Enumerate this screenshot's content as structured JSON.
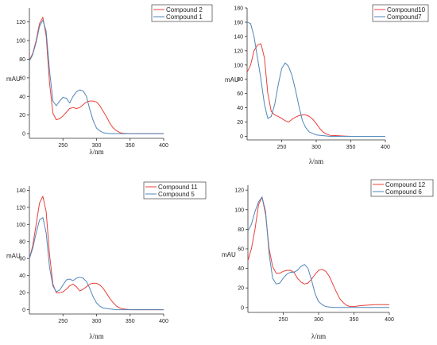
{
  "colors": {
    "red": "#e8403a",
    "blue": "#4f86b8"
  },
  "chart_data": [
    {
      "type": "line",
      "xlabel": "λ/nm",
      "ylabel": "mAU",
      "xlim": [
        200,
        400
      ],
      "ylim": [
        -5,
        135
      ],
      "xticks": [
        250,
        300,
        350,
        400
      ],
      "yticks": [
        0,
        20,
        40,
        60,
        80,
        100,
        120
      ],
      "legend": "top-right",
      "series": [
        {
          "name": "Compound 2",
          "color": "#e8403a",
          "x": [
            200,
            205,
            210,
            215,
            220,
            225,
            230,
            235,
            240,
            245,
            250,
            255,
            260,
            265,
            270,
            275,
            280,
            285,
            290,
            295,
            300,
            305,
            310,
            315,
            320,
            325,
            330,
            335,
            340,
            350,
            360,
            380,
            400
          ],
          "y": [
            79,
            86,
            100,
            118,
            125,
            105,
            55,
            22,
            15,
            16,
            19,
            23,
            27,
            28,
            27,
            28,
            31,
            34,
            35,
            35,
            34,
            30,
            24,
            18,
            11,
            6,
            3,
            1,
            0.5,
            0,
            0,
            0,
            0
          ]
        },
        {
          "name": "Compound 1",
          "color": "#4f86b8",
          "x": [
            200,
            205,
            210,
            215,
            220,
            225,
            230,
            235,
            240,
            245,
            250,
            255,
            260,
            265,
            270,
            275,
            280,
            285,
            290,
            295,
            300,
            305,
            310,
            320,
            330,
            350,
            400
          ],
          "y": [
            78,
            85,
            98,
            115,
            122,
            110,
            68,
            35,
            30,
            35,
            39,
            38,
            33,
            40,
            45,
            47,
            46,
            40,
            26,
            14,
            6,
            3,
            1,
            0,
            0,
            0,
            0
          ]
        }
      ]
    },
    {
      "type": "line",
      "xlabel": "λ/nm",
      "ylabel": "mAU",
      "xlim": [
        200,
        400
      ],
      "ylim": [
        -5,
        180
      ],
      "xticks": [
        250,
        300,
        350,
        400
      ],
      "yticks": [
        0,
        20,
        40,
        60,
        80,
        100,
        120,
        140,
        160,
        180
      ],
      "legend": "top-right",
      "series": [
        {
          "name": "Compound10",
          "color": "#e8403a",
          "x": [
            200,
            205,
            210,
            215,
            220,
            225,
            230,
            235,
            240,
            245,
            250,
            255,
            260,
            265,
            270,
            275,
            280,
            285,
            290,
            295,
            300,
            305,
            310,
            315,
            320,
            330,
            340,
            350,
            400
          ],
          "y": [
            90,
            100,
            120,
            128,
            130,
            110,
            60,
            35,
            30,
            28,
            25,
            22,
            20,
            24,
            27,
            29,
            30,
            30,
            28,
            24,
            18,
            11,
            6,
            3,
            1.5,
            1,
            0.5,
            0,
            0
          ]
        },
        {
          "name": "Compound7",
          "color": "#4f86b8",
          "x": [
            200,
            205,
            210,
            215,
            220,
            225,
            230,
            235,
            240,
            245,
            250,
            255,
            260,
            265,
            270,
            275,
            280,
            285,
            290,
            300,
            310,
            320,
            400
          ],
          "y": [
            160,
            158,
            140,
            110,
            80,
            45,
            25,
            28,
            45,
            72,
            95,
            103,
            98,
            85,
            65,
            42,
            22,
            12,
            6,
            2,
            1,
            0,
            0
          ]
        }
      ]
    },
    {
      "type": "line",
      "xlabel": "λ/nm",
      "ylabel": "mAU",
      "xlim": [
        200,
        400
      ],
      "ylim": [
        -5,
        145
      ],
      "xticks": [
        250,
        300,
        350,
        400
      ],
      "yticks": [
        0,
        20,
        40,
        60,
        80,
        100,
        120,
        140
      ],
      "legend": "top-right",
      "series": [
        {
          "name": "Compound 11",
          "color": "#e8403a",
          "x": [
            200,
            205,
            210,
            215,
            220,
            225,
            230,
            235,
            240,
            245,
            250,
            255,
            260,
            265,
            270,
            275,
            280,
            285,
            290,
            295,
            300,
            305,
            310,
            315,
            320,
            325,
            330,
            335,
            340,
            350,
            400
          ],
          "y": [
            60,
            75,
            100,
            125,
            133,
            115,
            65,
            30,
            20,
            20,
            21,
            24,
            28,
            30,
            27,
            22,
            24,
            27,
            30,
            31,
            31,
            29,
            25,
            19,
            13,
            8,
            4,
            2,
            1,
            0,
            0
          ]
        },
        {
          "name": "Compound 5",
          "color": "#4f86b8",
          "x": [
            200,
            205,
            210,
            215,
            220,
            225,
            230,
            235,
            240,
            245,
            250,
            255,
            260,
            265,
            270,
            275,
            280,
            285,
            290,
            295,
            300,
            305,
            310,
            320,
            330,
            350,
            400
          ],
          "y": [
            60,
            72,
            90,
            105,
            108,
            90,
            50,
            28,
            21,
            23,
            29,
            35,
            36,
            34,
            37,
            38,
            37,
            33,
            25,
            15,
            8,
            4,
            2,
            1,
            0,
            0,
            0
          ]
        }
      ]
    },
    {
      "type": "line",
      "xlabel": "λ/nm",
      "ylabel": "mAU",
      "xlim": [
        200,
        400
      ],
      "ylim": [
        -5,
        125
      ],
      "xticks": [
        250,
        300,
        350,
        400
      ],
      "yticks": [
        0,
        20,
        40,
        60,
        80,
        100,
        120
      ],
      "legend": "top-right",
      "series": [
        {
          "name": "Compound 12",
          "color": "#e8403a",
          "x": [
            200,
            205,
            210,
            215,
            220,
            225,
            230,
            235,
            240,
            245,
            250,
            255,
            260,
            265,
            270,
            275,
            280,
            285,
            290,
            295,
            300,
            305,
            310,
            315,
            320,
            325,
            330,
            335,
            340,
            345,
            350,
            360,
            380,
            400
          ],
          "y": [
            48,
            60,
            80,
            105,
            113,
            95,
            60,
            42,
            35,
            35,
            37,
            38,
            38,
            36,
            30,
            26,
            24,
            25,
            29,
            34,
            38,
            39,
            37,
            32,
            24,
            16,
            9,
            5,
            2,
            1,
            1,
            2,
            3,
            3
          ]
        },
        {
          "name": "Compound 6",
          "color": "#4f86b8",
          "x": [
            200,
            205,
            210,
            215,
            220,
            225,
            230,
            235,
            240,
            245,
            250,
            255,
            260,
            265,
            270,
            275,
            280,
            285,
            290,
            295,
            300,
            305,
            310,
            320,
            340,
            360,
            400
          ],
          "y": [
            78,
            85,
            98,
            108,
            113,
            98,
            55,
            30,
            24,
            25,
            30,
            34,
            36,
            36,
            38,
            42,
            44,
            40,
            28,
            14,
            6,
            3,
            1,
            0,
            0,
            0,
            0
          ]
        }
      ]
    }
  ]
}
